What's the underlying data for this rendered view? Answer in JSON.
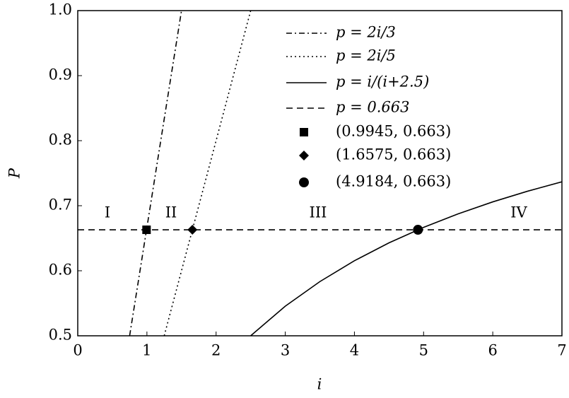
{
  "chart_data": {
    "type": "line",
    "x_label": "i",
    "y_label": "P",
    "xlim": [
      0,
      7
    ],
    "ylim": [
      0.5,
      1
    ],
    "xticks": [
      0,
      1,
      2,
      3,
      4,
      5,
      6,
      7
    ],
    "yticks": [
      0.5,
      0.6,
      0.7,
      0.8,
      0.9,
      {
        "value": 1,
        "label": "1.0"
      }
    ],
    "series": [
      {
        "name": "p = 2i/3",
        "color": "#000000",
        "style": "dashdot",
        "x": [
          0.75,
          1.5
        ],
        "values": [
          0.5,
          1.0
        ]
      },
      {
        "name": "p = 2i/5",
        "color": "#000000",
        "style": "dotted",
        "x": [
          1.25,
          2.5
        ],
        "values": [
          0.5,
          1.0
        ]
      },
      {
        "name": "p = i/(i+2.5)",
        "color": "#000000",
        "style": "solid",
        "x": [
          2.5,
          3,
          3.5,
          4,
          4.5,
          5,
          5.5,
          6,
          6.5,
          7
        ],
        "values": [
          0.5,
          0.5455,
          0.5833,
          0.6154,
          0.6429,
          0.6667,
          0.6875,
          0.7059,
          0.7222,
          0.7368
        ]
      },
      {
        "name": "p = 0.663",
        "color": "#000000",
        "style": "dashed",
        "x": [
          0,
          7
        ],
        "values": [
          0.663,
          0.663
        ]
      },
      {
        "name": "(0.9945, 0.663)",
        "color": "#000000",
        "marker": "square",
        "x": [
          0.9945
        ],
        "values": [
          0.663
        ]
      },
      {
        "name": "(1.6575, 0.663)",
        "color": "#000000",
        "marker": "diamond",
        "x": [
          1.6575
        ],
        "values": [
          0.663
        ]
      },
      {
        "name": "(4.9184, 0.663)",
        "color": "#000000",
        "marker": "circle",
        "x": [
          4.9184
        ],
        "values": [
          0.663
        ]
      }
    ],
    "annotations": [
      "I",
      "II",
      "III",
      "IV"
    ]
  }
}
